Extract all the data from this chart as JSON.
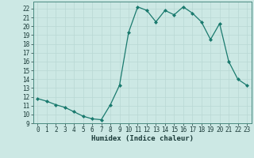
{
  "x": [
    0,
    1,
    2,
    3,
    4,
    5,
    6,
    7,
    8,
    9,
    10,
    11,
    12,
    13,
    14,
    15,
    16,
    17,
    18,
    19,
    20,
    21,
    22,
    23
  ],
  "y": [
    11.8,
    11.5,
    11.1,
    10.8,
    10.3,
    9.8,
    9.5,
    9.4,
    11.1,
    13.3,
    19.3,
    22.2,
    21.8,
    20.5,
    21.8,
    21.3,
    22.2,
    21.5,
    20.5,
    18.5,
    20.3,
    16.0,
    14.0,
    13.3
  ],
  "xlabel": "Humidex (Indice chaleur)",
  "xlim": [
    -0.5,
    23.5
  ],
  "ylim": [
    9,
    22.8
  ],
  "yticks": [
    9,
    10,
    11,
    12,
    13,
    14,
    15,
    16,
    17,
    18,
    19,
    20,
    21,
    22
  ],
  "xticks": [
    0,
    1,
    2,
    3,
    4,
    5,
    6,
    7,
    8,
    9,
    10,
    11,
    12,
    13,
    14,
    15,
    16,
    17,
    18,
    19,
    20,
    21,
    22,
    23
  ],
  "line_color": "#1a7a6e",
  "bg_color": "#cce8e4",
  "grid_color": "#b8d8d4",
  "marker": "D",
  "marker_size": 2.0,
  "line_width": 0.9,
  "tick_fontsize": 5.5,
  "xlabel_fontsize": 6.5
}
